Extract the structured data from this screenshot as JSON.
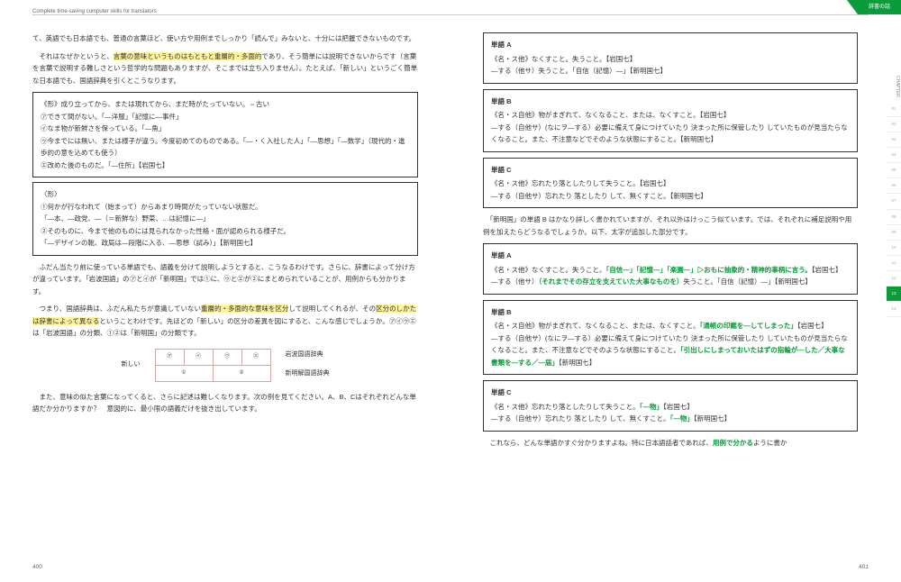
{
  "header": {
    "left": "Complete time-saving computer skills for translators",
    "right": "辞書の話"
  },
  "left": {
    "p1": "て、英語でも日本語でも、普通の言葉ほど、使い方や用例までしっかり「読んで」みないと、十分には把握できないものです。",
    "p2a": "　それはなぜかというと、",
    "p2h": "言葉の意味というものはもともと重層的・多面的",
    "p2b": "であり、そう簡単には説明できないからです（言葉を言葉で説明する難しさという哲学的な問題もありますが、そこまでは立ち入りません）。たとえば、「新しい」というごく簡単な日本語でも、国語辞典を引くとこうなります。",
    "box1": {
      "l1": "《形》成り立ってから、または現れてから、まだ時がたっていない。⇔古い",
      "l2": "㋐できて間がない。「―洋服」「記憶に―事件」",
      "l3": "㋑なま物が新鮮さを保っている。「―魚」",
      "l4": "㋒今までには無い、または様子が違う。今度初めてのものである。「―・く入社した人」「―思想」「―数学」（現代的・進歩的の意を込めても使う）",
      "l5": "㋓改めた後のものだ。「―住所」【岩国七】"
    },
    "box2": {
      "l1": "〈形〉",
      "l2": "①何かが行なわれて（始まって）からあまり時間がたっていない状態だ。",
      "l3": "「―本、―政党、―（＝新鮮な）野菜、…は記憶に―」",
      "l4": "②そのものに、今まで他のものには見られなかった性格・面が認められる様子だ。",
      "l5": "「―デザインの靴、政局は―段階に入る、―思想（試み）」【新明国七】"
    },
    "p3": "　ふだん当たり前に使っている単語でも、語義を分けて説明しようとすると、こうなるわけです。さらに、辞書によって分け方が違っています。「岩波国語」の㋐と㋑が「新明国」では①に、㋒と㋓が②にまとめられていることが、用例からも分かります。",
    "p4a": "　つまり、国語辞典は、ふだん私たちが意識していない",
    "p4h1": "重層的・多面的な意味を区分",
    "p4b": "して説明してくれるが、その",
    "p4h2": "区分のしかたは辞書によって異なる",
    "p4c": "ということわけです。先ほどの「新しい」の区分の差異を図にすると、こんな感じでしょうか。㋐㋑㋒㋓は「岩波国語」の分類、①②は「新明国」の分類です。",
    "diagram": {
      "left": "新しい",
      "cells": [
        "㋐",
        "㋑",
        "㋒",
        "㋓",
        "①",
        "②"
      ],
      "right1": "岩波国語辞典",
      "right2": "新明解国語辞典",
      "border_color": "#d4a5a5"
    },
    "p5": "　また、意味の似た言葉になってくると、さらに記述は難しくなります。次の例を見てください。A、B、Cはそれぞれどんな単語だか分かりますか？　意図的に、最小限の語義だけを抜き出しています。",
    "pagenum": "400"
  },
  "right": {
    "boxA": {
      "t": "単語 A",
      "l1": "《名・ス他》なくすこと。失うこと。【岩国七】",
      "l2": "―する（他サ）失うこと。「自信（記憶）―」【新明国七】"
    },
    "boxB": {
      "t": "単語 B",
      "l1": "《名・ス自他》物がまぎれて、なくなること、または、なくすこと。【岩国七】",
      "l2": "―する（自他サ）(なにヲ―する）必要に備えて身につけていたり 決まった所に保管したり していたものが見当たらなくなること。また、不注意などでそのような状態にすること。【新明国七】"
    },
    "boxC": {
      "t": "単語 C",
      "l1": "《名・ス他》忘れたり落としたりして失うこと。【岩国七】",
      "l2": "―する（自他サ）忘れたり 落としたり して、無くすこと。【新明国七】"
    },
    "p1": "　「新明国」の単語 B はかなり詳しく書かれていますが、それ以外はけっこう似ています。では、それぞれに補足説明や用例を加えたらどうなるでしょうか。以下、太字が追加した部分です。",
    "boxA2": {
      "t": "単語 A",
      "l1a": "《名・ス他》なくすこと。失うこと。",
      "l1g1": "「自信―」「記憶―」「楽園―」▷おもに抽象的・精神的事柄に言う。",
      "l1b": "【岩国七】",
      "l2a": "―する（他サ）",
      "l2g": "（それまでその存立を支えていた大事なものを）",
      "l2b": "失うこと。「自信（記憶）―」【新明国七】"
    },
    "boxB2": {
      "t": "単語 B",
      "l1a": "《名・ス自他》物がまぎれて、なくなること、または、なくすこと。",
      "l1g": "「通帳の印鑑を―してしまった」",
      "l1b": "【岩国七】",
      "l2a": "―する（自他サ）(なにヲ―する）必要に備えて身につけていたり 決まった所に保管したり していたものが見当たらなくなること。また、不注意などでそのような状態にすること。",
      "l2g": "「引出しにしまっておいたはずの指輪が―した／大事な書類を―する／―届」",
      "l2b": "【新明国七】"
    },
    "boxC2": {
      "t": "単語 C",
      "l1a": "《名・ス他》忘れたり落としたりして失うこと。",
      "l1g": "「―物」",
      "l1b": "【岩国七】",
      "l2a": "―する（自他サ）忘れたり 落としたり して、無くすこと。",
      "l2g": "「―物」",
      "l2b": "【新明国七】"
    },
    "p2a": "　これなら、どんな単語かすぐ分かりますよね。特に日本語話者であれば、",
    "p2g": "用例で分かる",
    "p2b": "ように書か",
    "pagenum": "401",
    "tabs": {
      "chapter": "CHAPTER",
      "items": [
        "01",
        "02",
        "03",
        "04",
        "05",
        "06",
        "07",
        "08",
        "09",
        "10",
        "11",
        "12",
        "13",
        "14"
      ],
      "active": 12
    }
  }
}
